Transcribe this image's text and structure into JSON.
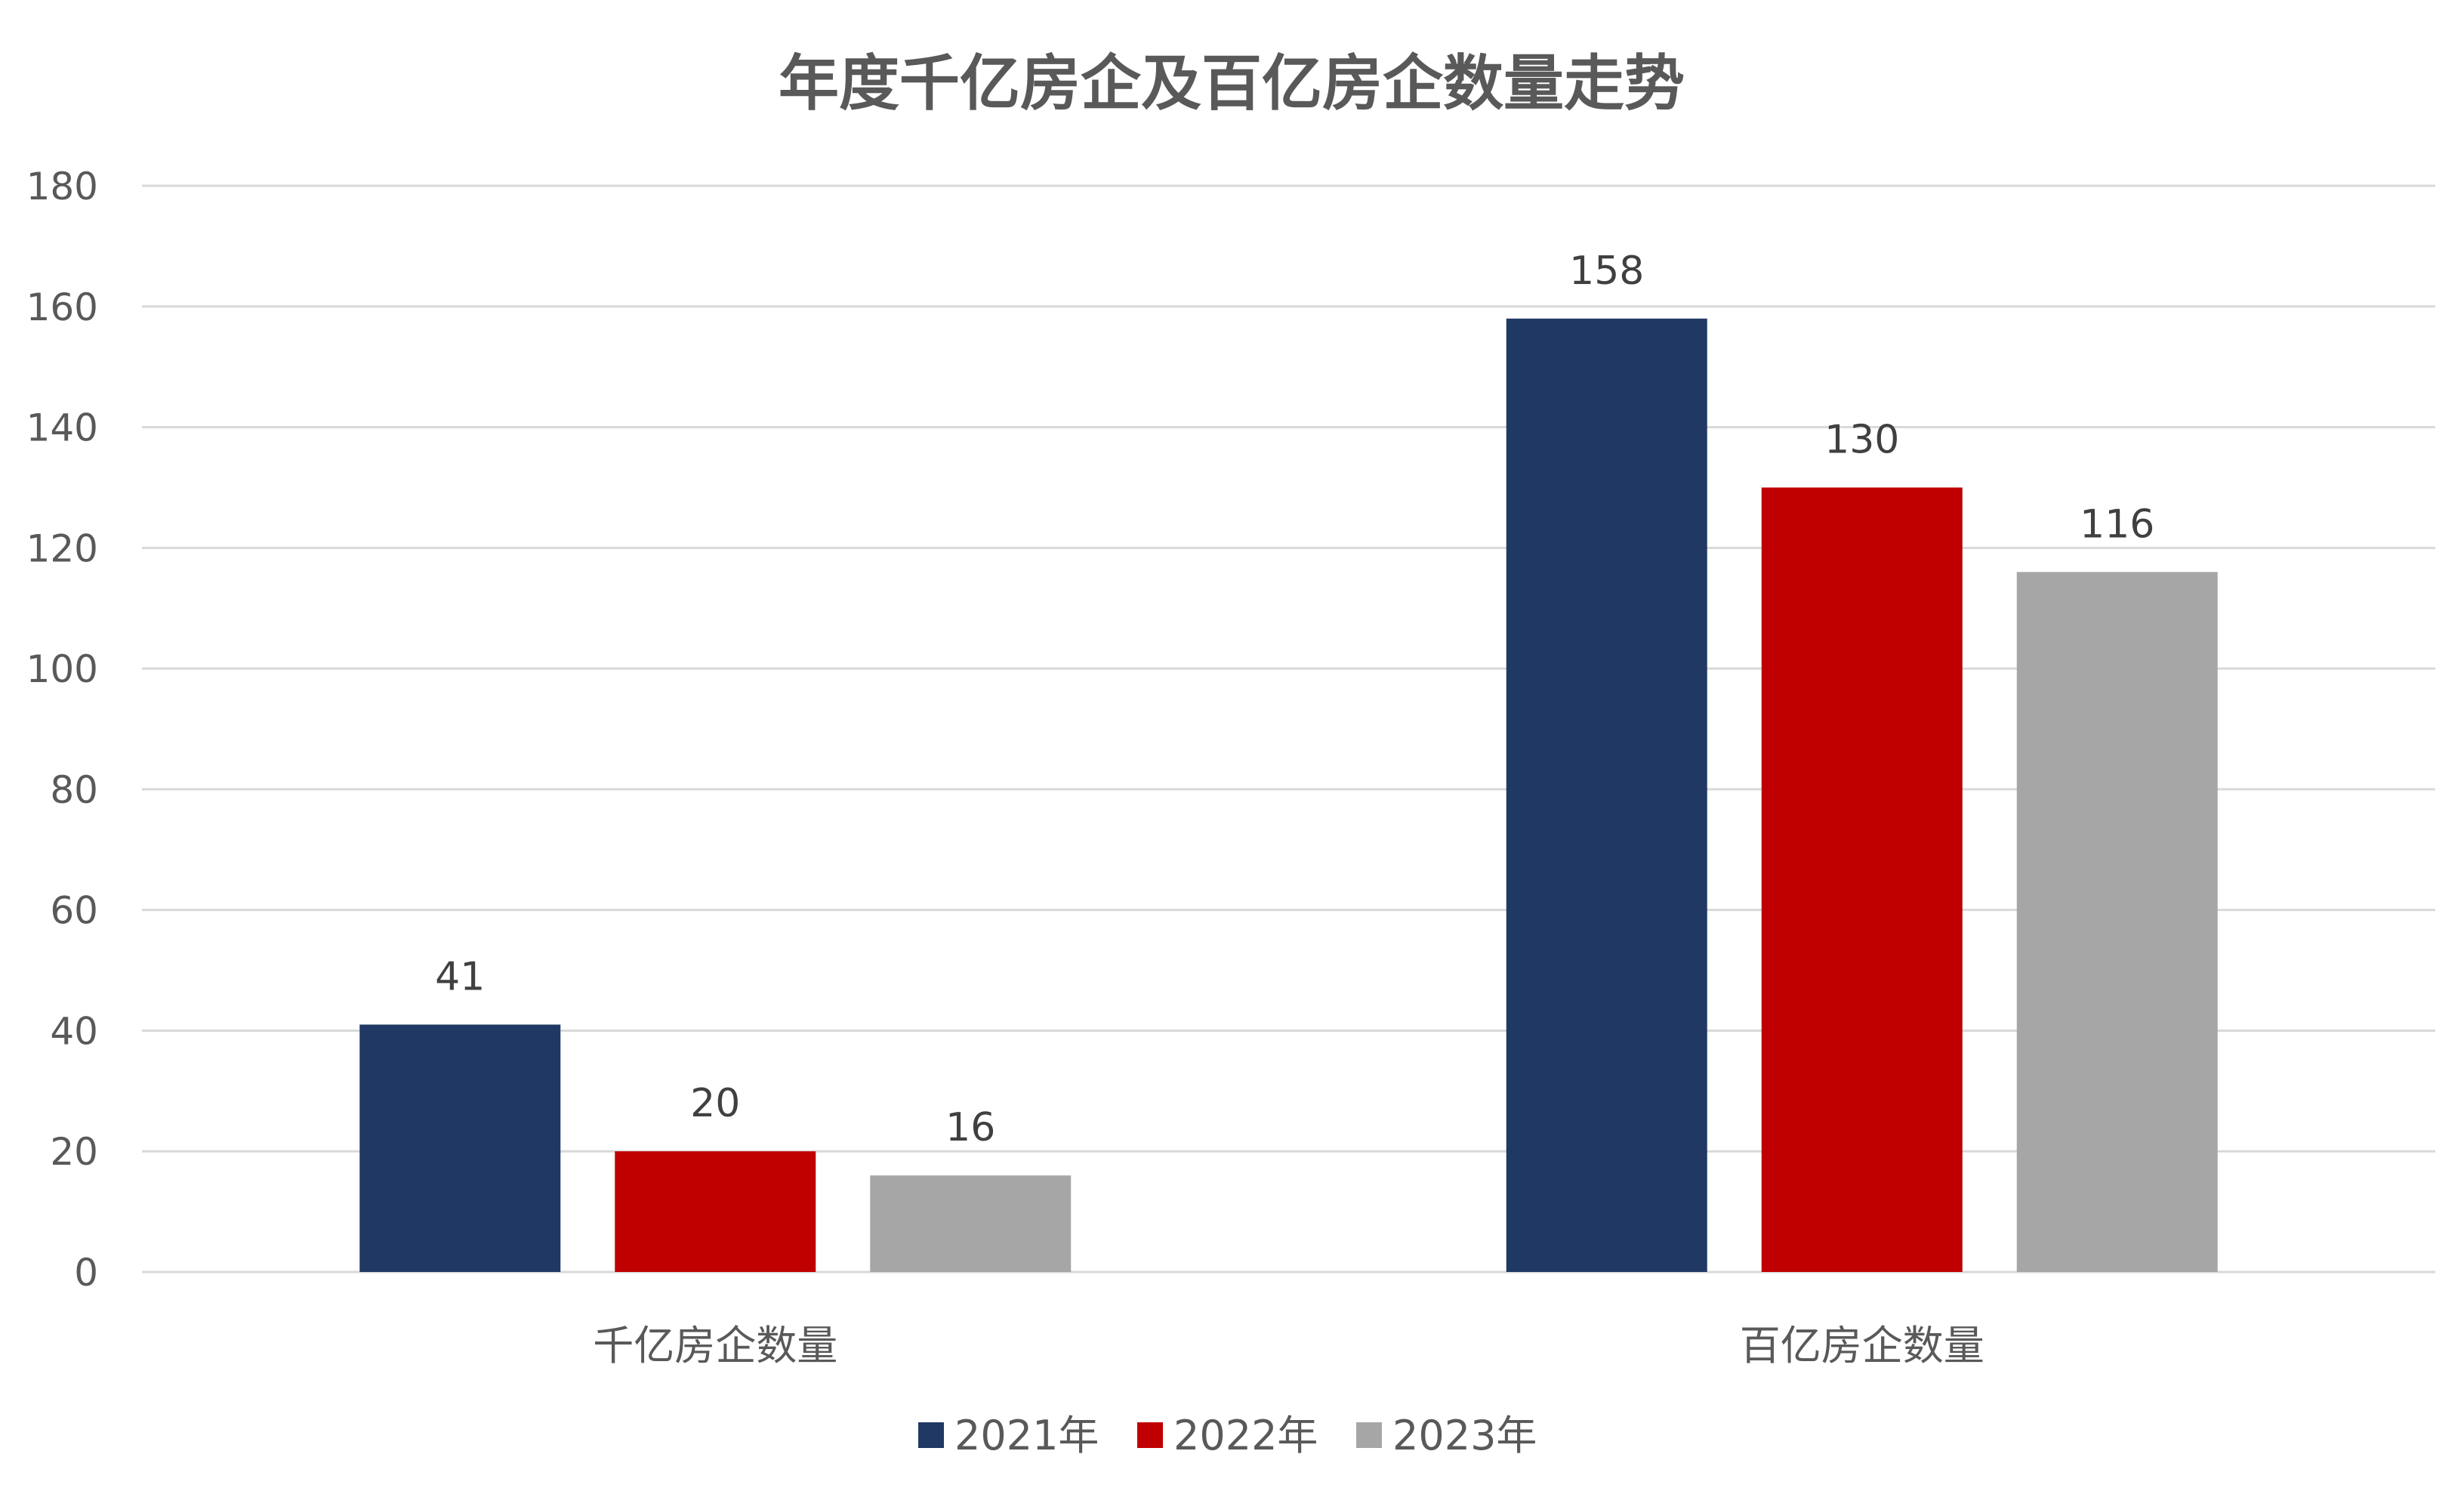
{
  "chart_data": {
    "type": "bar",
    "title": "年度千亿房企及百亿房企数量走势",
    "xlabel": "",
    "ylabel": "",
    "categories": [
      "千亿房企数量",
      "百亿房企数量"
    ],
    "series": [
      {
        "name": "2021年",
        "values": [
          41,
          158
        ],
        "color": "#203864"
      },
      {
        "name": "2022年",
        "values": [
          20,
          130
        ],
        "color": "#C00000"
      },
      {
        "name": "2023年",
        "values": [
          16,
          116
        ],
        "color": "#A6A6A6"
      }
    ],
    "ylim": [
      0,
      180
    ],
    "yticks": [
      0,
      20,
      40,
      60,
      80,
      100,
      120,
      140,
      160,
      180
    ],
    "grid": true,
    "legend_position": "bottom",
    "data_labels": true
  }
}
